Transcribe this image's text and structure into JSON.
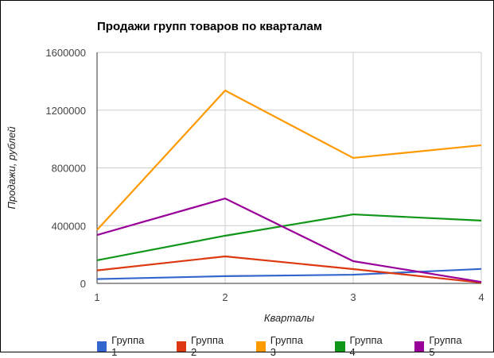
{
  "chart_data": {
    "type": "line",
    "title": "Продажи групп товаров по кварталам",
    "xlabel": "Кварталы",
    "ylabel": "Продажи, рублей",
    "x": [
      1,
      2,
      3,
      4
    ],
    "x_tick_labels": [
      "1",
      "2",
      "3",
      "4"
    ],
    "y_tick_labels": [
      "0",
      "400000",
      "800000",
      "1200000",
      "1600000"
    ],
    "ylim": [
      0,
      1600000
    ],
    "grid": true,
    "legend_position": "bottom",
    "series": [
      {
        "name": "Группа 1",
        "color": "#3366cc",
        "values": [
          30000,
          50000,
          60000,
          100000
        ]
      },
      {
        "name": "Группа 2",
        "color": "#dc3912",
        "values": [
          90000,
          187000,
          99000,
          5000
        ]
      },
      {
        "name": "Группа 3",
        "color": "#ff9900",
        "values": [
          370000,
          1336000,
          869000,
          957000
        ]
      },
      {
        "name": "Группа 4",
        "color": "#109618",
        "values": [
          160000,
          330000,
          478000,
          435000
        ]
      },
      {
        "name": "Группа 5",
        "color": "#990099",
        "values": [
          335000,
          588000,
          154000,
          10000
        ]
      }
    ]
  }
}
